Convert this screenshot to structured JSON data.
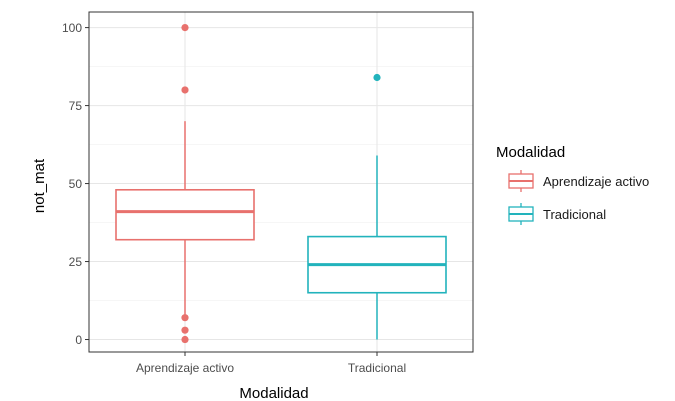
{
  "chart_data": {
    "type": "boxplot",
    "title": "",
    "xlabel": "Modalidad",
    "ylabel": "not_mat",
    "ylim": [
      -4,
      105
    ],
    "yticks": [
      0,
      25,
      50,
      75,
      100
    ],
    "ytick_labels": [
      "0",
      "25",
      "50",
      "75",
      "100"
    ],
    "grid": true,
    "legend": {
      "title": "Modalidad",
      "position": "right"
    },
    "series": [
      {
        "name": "Aprendizaje activo",
        "color": "#E8716D",
        "q1": 32,
        "median": 41,
        "q3": 48,
        "whisker_low": 7,
        "whisker_high": 70,
        "outliers": [
          100,
          80,
          7,
          3,
          0
        ]
      },
      {
        "name": "Tradicional",
        "color": "#22B3BC",
        "q1": 15,
        "median": 24,
        "q3": 33,
        "whisker_low": 0,
        "whisker_high": 59,
        "outliers": [
          84
        ]
      }
    ]
  }
}
